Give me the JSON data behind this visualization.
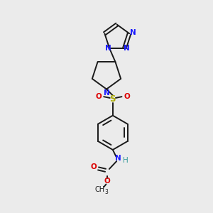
{
  "bg_color": "#ebebeb",
  "bond_color": "#1a1a1a",
  "nitrogen_color": "#1919ff",
  "oxygen_color": "#dd0000",
  "sulfur_color": "#aaaa00",
  "nh_color": "#339999",
  "fig_w": 3.0,
  "fig_h": 3.0,
  "dpi": 100,
  "xlim": [
    0,
    10
  ],
  "ylim": [
    0,
    10
  ]
}
